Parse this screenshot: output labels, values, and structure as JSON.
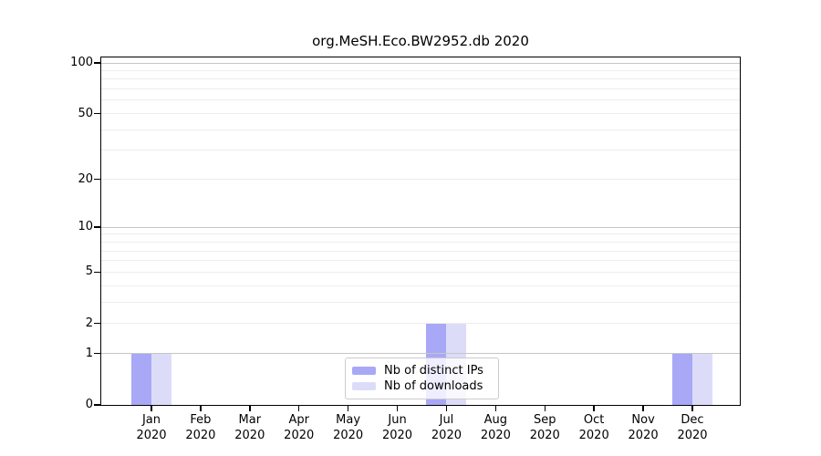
{
  "figure": {
    "background": "#ffffff"
  },
  "chart_data": {
    "type": "bar",
    "title": "org.MeSH.Eco.BW2952.db 2020",
    "x_months": [
      "Jan",
      "Feb",
      "Mar",
      "Apr",
      "May",
      "Jun",
      "Jul",
      "Aug",
      "Sep",
      "Oct",
      "Nov",
      "Dec"
    ],
    "x_year": "2020",
    "series": [
      {
        "name": "Nb of distinct IPs",
        "color": "#a8a8f7",
        "values": [
          1,
          0,
          0,
          0,
          0,
          0,
          2,
          0,
          0,
          0,
          0,
          1
        ]
      },
      {
        "name": "Nb of downloads",
        "color": "#dcdcf9",
        "values": [
          1,
          0,
          0,
          0,
          0,
          0,
          2,
          0,
          0,
          0,
          0,
          1
        ]
      }
    ],
    "y_ticks": [
      0,
      1,
      2,
      5,
      10,
      20,
      50,
      100
    ],
    "ylim": [
      0,
      100
    ],
    "y_scale": "log1p",
    "grid": true,
    "grid_values_major": [
      1,
      10,
      100
    ],
    "grid_values_minor": [
      2,
      3,
      4,
      5,
      6,
      7,
      8,
      9,
      20,
      30,
      40,
      50,
      60,
      70,
      80,
      90
    ],
    "legend_position": "bottom-center"
  },
  "colors": {
    "axis": "#000000",
    "text": "#000000",
    "grid_major": "#c6c6c6",
    "grid_minor": "#ededed",
    "legend_border": "#cccccc"
  }
}
